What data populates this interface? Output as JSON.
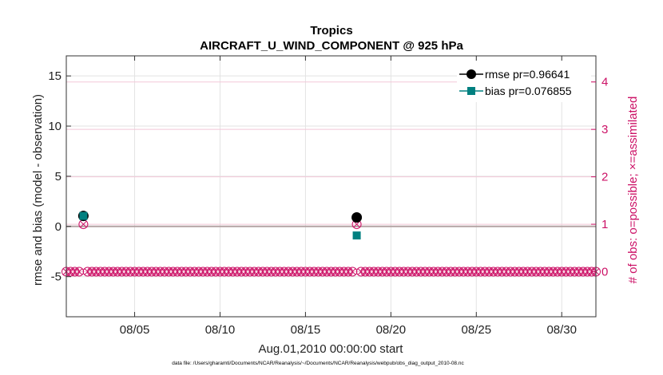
{
  "chart_data": {
    "type": "line",
    "title": "Tropics",
    "subtitle": "AIRCRAFT_U_WIND_COMPONENT @ 925 hPa",
    "xlabel": "Aug.01,2010 00:00:00 start",
    "ylabel_left": "rmse and bias (model - observation)",
    "ylabel_right": "# of obs: o=possible; ×=assimilated",
    "xlim": [
      1,
      32
    ],
    "ylim_left": [
      -9,
      17
    ],
    "ylim_right": [
      -0.95,
      4.55
    ],
    "x_ticks": [
      5,
      10,
      15,
      20,
      25,
      30
    ],
    "x_tick_labels": [
      "08/05",
      "08/10",
      "08/15",
      "08/20",
      "08/25",
      "08/30"
    ],
    "y_ticks_left": [
      -5,
      0,
      5,
      10,
      15
    ],
    "y_ticks_right": [
      0,
      1,
      2,
      3,
      4
    ],
    "grid": true,
    "legend_position": "top-right",
    "series": [
      {
        "name": "rmse pr=0.96641",
        "axis": "left",
        "marker": "circle",
        "color": "#000000",
        "points": [
          [
            2,
            1.05
          ],
          [
            18,
            0.9
          ]
        ]
      },
      {
        "name": "bias pr=0.076855",
        "axis": "left",
        "marker": "square",
        "color": "#008080",
        "points": [
          [
            2,
            1.05
          ],
          [
            18,
            -0.9
          ]
        ]
      },
      {
        "name": "obs possible",
        "axis": "right",
        "marker": "open-circle",
        "color": "#cc1166",
        "x_start": 1,
        "x_end": 32,
        "x_step": 0.25,
        "baseline": 0,
        "nonzero": [
          [
            2,
            1
          ],
          [
            18,
            1
          ]
        ]
      },
      {
        "name": "obs assimilated",
        "axis": "right",
        "marker": "x",
        "color": "#cc1166",
        "x_start": 1,
        "x_end": 32,
        "x_step": 0.25,
        "baseline": 0,
        "nonzero": [
          [
            2,
            1
          ],
          [
            18,
            1
          ]
        ]
      }
    ],
    "zero_line_color": "#b3a3a3",
    "footnote": "data file: /Users/gharamti/Documents/NCAR/Reanalysis/~/Documents/NCAR/Reanalysis/webpub/obs_diag_output_2010-08.nc"
  }
}
